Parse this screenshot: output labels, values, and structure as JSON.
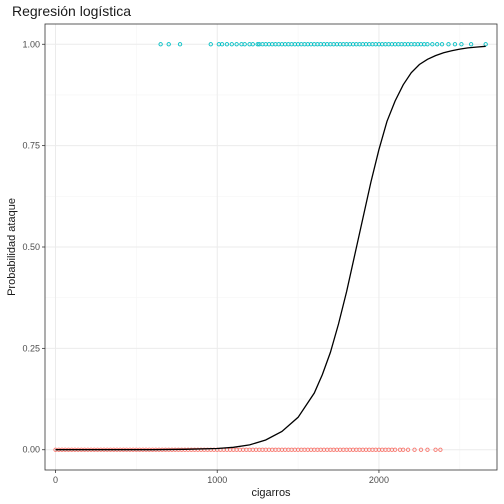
{
  "chart_data": {
    "type": "scatter",
    "title": "Regresión logística",
    "xlabel": "cigarros",
    "ylabel": "Probabilidad ataque",
    "xlim": [
      -65,
      2730
    ],
    "ylim": [
      -0.05,
      1.05
    ],
    "x_ticks": [
      0,
      1000,
      2000
    ],
    "x_tick_labels": [
      "0",
      "1000",
      "2000"
    ],
    "y_ticks": [
      0,
      0.25,
      0.5,
      0.75,
      1
    ],
    "y_tick_labels": [
      "0.00",
      "0.25",
      "0.50",
      "0.75",
      "1.00"
    ],
    "grid": true,
    "legend": "none",
    "colors": {
      "series_0": "#F8766D",
      "series_1": "#00BFC4",
      "curve": "#000000",
      "grid_major": "#ebebeb",
      "grid_minor": "#f5f5f5",
      "panel_border": "#333333"
    },
    "series": [
      {
        "y": 0,
        "x": [
          0,
          20,
          40,
          60,
          80,
          100,
          120,
          140,
          160,
          180,
          200,
          220,
          240,
          260,
          280,
          300,
          320,
          340,
          360,
          380,
          400,
          420,
          440,
          460,
          480,
          500,
          520,
          540,
          560,
          580,
          600,
          620,
          640,
          660,
          680,
          700,
          720,
          740,
          760,
          780,
          800,
          820,
          840,
          860,
          880,
          900,
          920,
          940,
          960,
          980,
          1000,
          1020,
          1040,
          1060,
          1080,
          1100,
          1120,
          1140,
          1160,
          1180,
          1200,
          1220,
          1240,
          1260,
          1280,
          1300,
          1320,
          1340,
          1360,
          1380,
          1400,
          1420,
          1440,
          1460,
          1480,
          1500,
          1520,
          1540,
          1560,
          1580,
          1600,
          1620,
          1640,
          1660,
          1680,
          1700,
          1720,
          1740,
          1760,
          1780,
          1800,
          1820,
          1840,
          1860,
          1880,
          1900,
          1920,
          1940,
          1960,
          1980,
          2000,
          2020,
          2040,
          2060,
          2080,
          2100,
          2130,
          2150,
          2180,
          2220,
          2260,
          2300,
          2350,
          2380
        ]
      },
      {
        "y": 1,
        "x": [
          650,
          700,
          770,
          960,
          1010,
          1030,
          1060,
          1090,
          1120,
          1150,
          1170,
          1200,
          1220,
          1250,
          1260,
          1280,
          1300,
          1320,
          1340,
          1360,
          1380,
          1400,
          1420,
          1440,
          1460,
          1480,
          1500,
          1520,
          1540,
          1560,
          1580,
          1600,
          1620,
          1640,
          1660,
          1680,
          1700,
          1720,
          1740,
          1760,
          1780,
          1800,
          1820,
          1840,
          1860,
          1880,
          1900,
          1920,
          1940,
          1960,
          1980,
          2000,
          2020,
          2040,
          2060,
          2080,
          2100,
          2120,
          2140,
          2160,
          2180,
          2200,
          2220,
          2240,
          2260,
          2280,
          2300,
          2330,
          2360,
          2390,
          2430,
          2470,
          2510,
          2570,
          2660
        ]
      }
    ],
    "curve": {
      "x": [
        0,
        200,
        400,
        600,
        800,
        1000,
        1100,
        1200,
        1300,
        1400,
        1500,
        1600,
        1650,
        1700,
        1750,
        1800,
        1850,
        1900,
        1950,
        2000,
        2050,
        2100,
        2150,
        2200,
        2250,
        2300,
        2350,
        2400,
        2450,
        2500,
        2550,
        2600,
        2660
      ],
      "y": [
        0.0,
        0.0,
        0.0,
        0.0,
        0.001,
        0.003,
        0.006,
        0.012,
        0.024,
        0.045,
        0.08,
        0.14,
        0.185,
        0.24,
        0.31,
        0.39,
        0.48,
        0.57,
        0.66,
        0.74,
        0.81,
        0.86,
        0.9,
        0.93,
        0.95,
        0.963,
        0.972,
        0.979,
        0.984,
        0.988,
        0.991,
        0.993,
        0.995
      ]
    }
  }
}
